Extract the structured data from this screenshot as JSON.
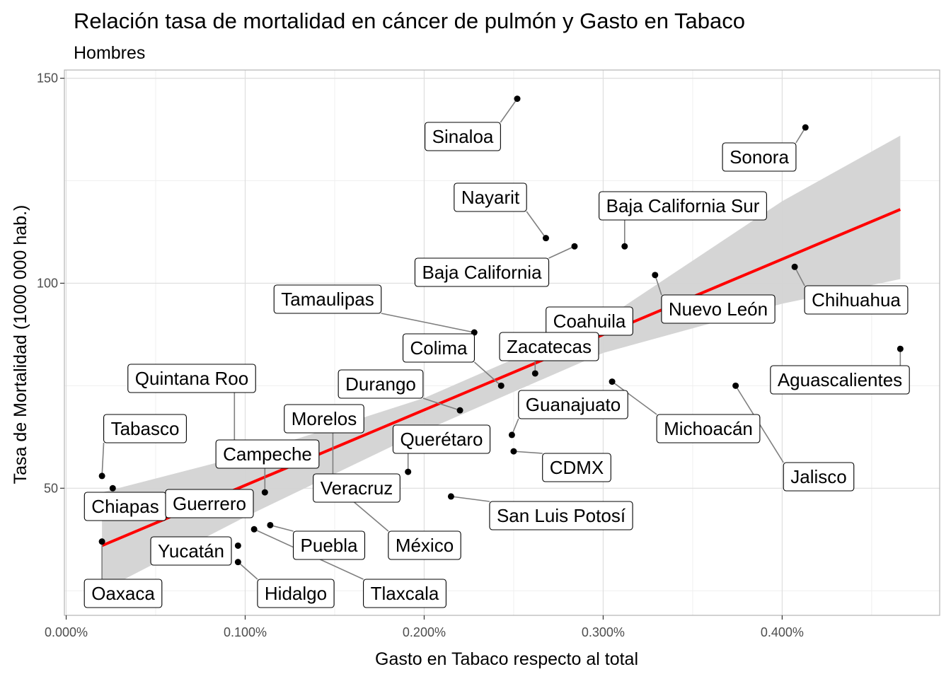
{
  "chart_data": {
    "type": "scatter",
    "title": "Relación tasa de mortalidad en cáncer de pulmón y Gasto en Tabaco",
    "subtitle": "Hombres",
    "xlabel": "Gasto en Tabaco respecto al total",
    "ylabel": "Tasa de Mortalidad   (1000 000 hab.)",
    "xlim": [
      -1e-05,
      0.00488
    ],
    "ylim": [
      19,
      152
    ],
    "x_ticks": [
      0.0,
      0.001,
      0.002,
      0.003,
      0.004
    ],
    "x_tick_labels": [
      "0.000%",
      "0.100%",
      "0.200%",
      "0.300%",
      "0.400%"
    ],
    "y_ticks": [
      50,
      100,
      150
    ],
    "y_tick_labels": [
      "50",
      "100",
      "150"
    ],
    "grid": true,
    "colors": {
      "points": "#000000",
      "fit_line": "#ff0000",
      "confidence_band": "#d3d3d3",
      "panel_border": "#b3b3b3",
      "grid_major": "#dedede",
      "grid_minor": "#efefef",
      "label_border": "#000000",
      "label_fill": "#ffffff",
      "leader_line": "#7f7f7f"
    },
    "points": [
      {
        "name": "Sinaloa",
        "x": 0.00252,
        "y": 145
      },
      {
        "name": "Sonora",
        "x": 0.00413,
        "y": 138
      },
      {
        "name": "Nayarit",
        "x": 0.00268,
        "y": 111
      },
      {
        "name": "Baja California Sur",
        "x": 0.00312,
        "y": 109
      },
      {
        "name": "Baja California",
        "x": 0.00284,
        "y": 109
      },
      {
        "name": "Nuevo León",
        "x": 0.00329,
        "y": 102
      },
      {
        "name": "Chihuahua",
        "x": 0.00407,
        "y": 104
      },
      {
        "name": "Tamaulipas",
        "x": 0.00228,
        "y": 88
      },
      {
        "name": "Coahuila",
        "x": 0.00303,
        "y": 93
      },
      {
        "name": "Colima",
        "x": 0.00243,
        "y": 75
      },
      {
        "name": "Zacatecas",
        "x": 0.00262,
        "y": 78
      },
      {
        "name": "Aguascalientes",
        "x": 0.00466,
        "y": 84
      },
      {
        "name": "Durango",
        "x": 0.0022,
        "y": 69
      },
      {
        "name": "Michoacán",
        "x": 0.00305,
        "y": 76
      },
      {
        "name": "Jalisco",
        "x": 0.00374,
        "y": 75
      },
      {
        "name": "Quintana Roo",
        "x": 0.00094,
        "y": 60
      },
      {
        "name": "Guanajuato",
        "x": 0.00249,
        "y": 63
      },
      {
        "name": "Tabasco",
        "x": 0.0002,
        "y": 53
      },
      {
        "name": "Morelos",
        "x": 0.00149,
        "y": 51
      },
      {
        "name": "Querétaro",
        "x": 0.00191,
        "y": 54
      },
      {
        "name": "CDMX",
        "x": 0.0025,
        "y": 59
      },
      {
        "name": "Campeche",
        "x": 0.00111,
        "y": 49
      },
      {
        "name": "Veracruz",
        "x": 0.00149,
        "y": 51
      },
      {
        "name": "Chiapas",
        "x": 0.00026,
        "y": 50
      },
      {
        "name": "Guerrero",
        "x": 0.0006,
        "y": 49
      },
      {
        "name": "San Luis Potosí",
        "x": 0.00215,
        "y": 48
      },
      {
        "name": "México",
        "x": 0.00149,
        "y": 51
      },
      {
        "name": "Puebla",
        "x": 0.00114,
        "y": 41
      },
      {
        "name": "Tlaxcala",
        "x": 0.00105,
        "y": 40
      },
      {
        "name": "Yucatán",
        "x": 0.00096,
        "y": 36
      },
      {
        "name": "Hidalgo",
        "x": 0.00096,
        "y": 32
      },
      {
        "name": "Oaxaca",
        "x": 0.0002,
        "y": 37
      }
    ],
    "fit_line": {
      "x": [
        0.0002,
        0.00466
      ],
      "y": [
        36,
        118
      ]
    },
    "confidence_band": {
      "x": [
        0.0002,
        0.001,
        0.002,
        0.003,
        0.004,
        0.00466
      ],
      "lower": [
        25,
        43,
        64,
        83,
        95,
        101
      ],
      "upper": [
        49,
        58,
        72,
        91,
        120,
        136
      ]
    }
  }
}
